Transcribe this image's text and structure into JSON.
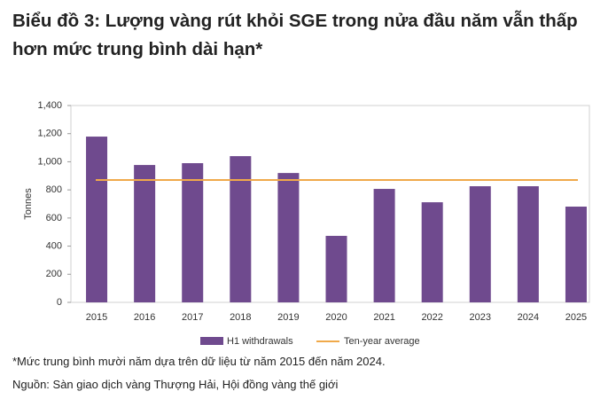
{
  "chart_data": {
    "type": "bar",
    "title": "Biểu đồ 3: Lượng vàng rút khỏi SGE trong nửa đầu năm vẫn thấp hơn mức trung bình dài hạn*",
    "y_label": "Tonnes",
    "categories": [
      "2015",
      "2016",
      "2017",
      "2018",
      "2019",
      "2020",
      "2021",
      "2022",
      "2023",
      "2024",
      "2025"
    ],
    "series": [
      {
        "name": "H1 withdrawals",
        "color": "#6f4a8e",
        "values": [
          1179,
          977,
          990,
          1040,
          920,
          473,
          807,
          712,
          826,
          826,
          681
        ]
      }
    ],
    "reference_line": {
      "name": "Ten-year average",
      "value": 870,
      "color": "#f0a94a"
    },
    "ylim": [
      0,
      1400
    ],
    "yticks": [
      0,
      200,
      400,
      600,
      800,
      {
        "value": 1000,
        "label": "1,000"
      },
      {
        "value": 1200,
        "label": "1,200"
      },
      {
        "value": 1400,
        "label": "1,400"
      }
    ],
    "grid": false,
    "legend": "bottom"
  },
  "notes": [
    "*Mức trung bình mười năm dựa trên dữ liệu từ năm 2015 đến năm 2024.",
    "Nguồn: Sàn giao dịch vàng Thượng Hải, Hội đồng vàng thế giới"
  ]
}
